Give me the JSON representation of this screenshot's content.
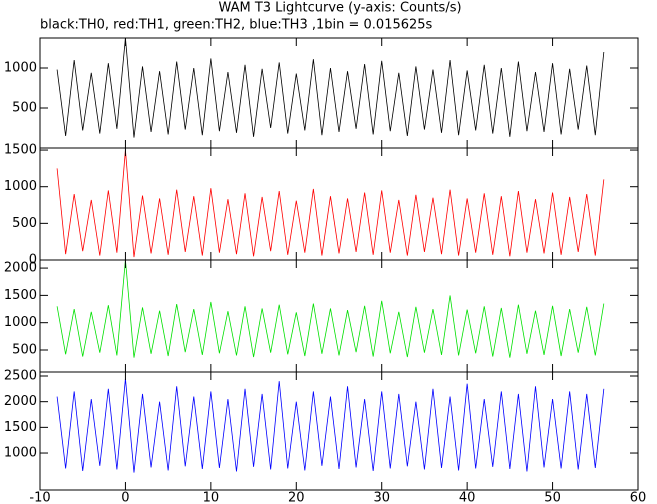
{
  "chart_data": [
    {
      "type": "line",
      "title": "WAM T3 Lightcurve (y-axis: Counts/s)",
      "subtitle": "black:TH0, red:TH1, green:TH2, blue:TH3 ,1bin = 0.015625s",
      "color": "#000000",
      "xlim": [
        -10,
        60
      ],
      "ylim": [
        0,
        1375
      ],
      "yticks": [
        500,
        1000
      ],
      "x": [
        -8,
        -7,
        -6,
        -5,
        -4,
        -3,
        -2,
        -1,
        0,
        1,
        2,
        3,
        4,
        5,
        6,
        7,
        8,
        9,
        10,
        11,
        12,
        13,
        14,
        15,
        16,
        17,
        18,
        19,
        20,
        21,
        22,
        23,
        24,
        25,
        26,
        27,
        28,
        29,
        30,
        31,
        32,
        33,
        34,
        35,
        36,
        37,
        38,
        39,
        40,
        41,
        42,
        43,
        44,
        45,
        46,
        47,
        48,
        49,
        50,
        51,
        52,
        53,
        54,
        55,
        56
      ],
      "values": [
        980,
        150,
        1100,
        220,
        940,
        180,
        1060,
        240,
        1375,
        130,
        1020,
        200,
        960,
        170,
        1080,
        230,
        1000,
        160,
        1120,
        210,
        950,
        190,
        1040,
        140,
        990,
        250,
        1070,
        180,
        930,
        220,
        1110,
        160,
        1000,
        200,
        960,
        240,
        1050,
        170,
        1090,
        210,
        940,
        150,
        1020,
        230,
        980,
        190,
        1100,
        160,
        970,
        220,
        1040,
        180,
        1000,
        140,
        1080,
        210,
        950,
        200,
        1060,
        170,
        990,
        230,
        1030,
        160,
        1200
      ]
    },
    {
      "type": "line",
      "color": "#ff0000",
      "xlim": [
        -10,
        60
      ],
      "ylim": [
        0,
        1528
      ],
      "yticks": [
        0,
        500,
        1000,
        1500
      ],
      "x": [
        -8,
        -7,
        -6,
        -5,
        -4,
        -3,
        -2,
        -1,
        0,
        1,
        2,
        3,
        4,
        5,
        6,
        7,
        8,
        9,
        10,
        11,
        12,
        13,
        14,
        15,
        16,
        17,
        18,
        19,
        20,
        21,
        22,
        23,
        24,
        25,
        26,
        27,
        28,
        29,
        30,
        31,
        32,
        33,
        34,
        35,
        36,
        37,
        38,
        39,
        40,
        41,
        42,
        43,
        44,
        45,
        46,
        47,
        48,
        49,
        50,
        51,
        52,
        53,
        54,
        55,
        56
      ],
      "values": [
        1250,
        80,
        900,
        120,
        820,
        60,
        950,
        100,
        1500,
        40,
        880,
        90,
        840,
        70,
        960,
        110,
        870,
        60,
        980,
        100,
        830,
        80,
        910,
        50,
        860,
        120,
        940,
        70,
        810,
        100,
        970,
        60,
        870,
        90,
        840,
        110,
        920,
        70,
        950,
        100,
        820,
        60,
        890,
        110,
        850,
        80,
        960,
        60,
        840,
        100,
        910,
        70,
        870,
        50,
        940,
        100,
        830,
        90,
        920,
        70,
        860,
        110,
        900,
        60,
        1100
      ]
    },
    {
      "type": "line",
      "color": "#00e000",
      "xlim": [
        -10,
        60
      ],
      "ylim": [
        97,
        2148
      ],
      "yticks": [
        500,
        1000,
        1500,
        2000
      ],
      "x": [
        -8,
        -7,
        -6,
        -5,
        -4,
        -3,
        -2,
        -1,
        0,
        1,
        2,
        3,
        4,
        5,
        6,
        7,
        8,
        9,
        10,
        11,
        12,
        13,
        14,
        15,
        16,
        17,
        18,
        19,
        20,
        21,
        22,
        23,
        24,
        25,
        26,
        27,
        28,
        29,
        30,
        31,
        32,
        33,
        34,
        35,
        36,
        37,
        38,
        39,
        40,
        41,
        42,
        43,
        44,
        45,
        46,
        47,
        48,
        49,
        50,
        51,
        52,
        53,
        54,
        55,
        56
      ],
      "values": [
        1300,
        420,
        1250,
        380,
        1200,
        450,
        1320,
        400,
        2148,
        360,
        1280,
        430,
        1220,
        390,
        1340,
        460,
        1250,
        410,
        1380,
        440,
        1210,
        400,
        1300,
        370,
        1260,
        450,
        1330,
        420,
        1190,
        390,
        1350,
        430,
        1260,
        400,
        1230,
        460,
        1310,
        380,
        1400,
        440,
        1200,
        370,
        1290,
        450,
        1250,
        410,
        1500,
        400,
        1240,
        440,
        1300,
        380,
        1270,
        360,
        1330,
        430,
        1220,
        410,
        1310,
        390,
        1250,
        450,
        1290,
        400,
        1350
      ]
    },
    {
      "type": "line",
      "color": "#0000ff",
      "xlim": [
        -10,
        60
      ],
      "ylim": [
        280,
        2578
      ],
      "yticks": [
        1000,
        1500,
        2000,
        2500
      ],
      "xticks": [
        -10,
        0,
        10,
        20,
        30,
        40,
        50,
        60
      ],
      "x": [
        -8,
        -7,
        -6,
        -5,
        -4,
        -3,
        -2,
        -1,
        0,
        1,
        2,
        3,
        4,
        5,
        6,
        7,
        8,
        9,
        10,
        11,
        12,
        13,
        14,
        15,
        16,
        17,
        18,
        19,
        20,
        21,
        22,
        23,
        24,
        25,
        26,
        27,
        28,
        29,
        30,
        31,
        32,
        33,
        34,
        35,
        36,
        37,
        38,
        39,
        40,
        41,
        42,
        43,
        44,
        45,
        46,
        47,
        48,
        49,
        50,
        51,
        52,
        53,
        54,
        55,
        56
      ],
      "values": [
        2100,
        700,
        2200,
        650,
        2050,
        750,
        2250,
        680,
        2450,
        620,
        2150,
        720,
        2000,
        660,
        2300,
        740,
        2100,
        690,
        2200,
        710,
        2050,
        640,
        2250,
        730,
        2150,
        680,
        2400,
        700,
        2000,
        660,
        2200,
        750,
        2100,
        690,
        2300,
        720,
        2050,
        650,
        2200,
        700,
        2150,
        740,
        2000,
        680,
        2250,
        710,
        2100,
        660,
        2350,
        700,
        2050,
        730,
        2200,
        690,
        2150,
        640,
        2300,
        720,
        2050,
        700,
        2200,
        680,
        2150,
        710,
        2250
      ]
    }
  ]
}
